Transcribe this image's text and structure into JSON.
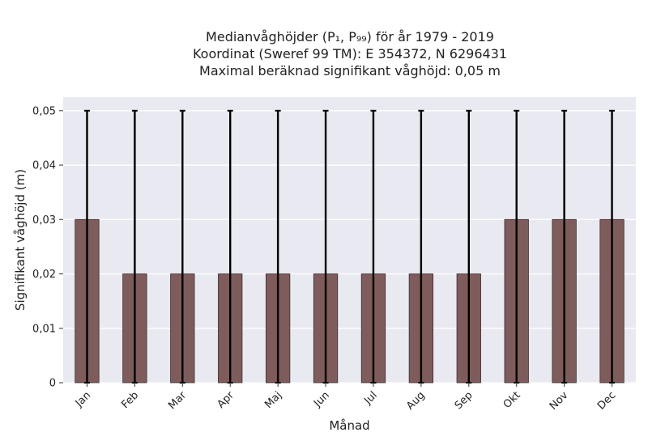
{
  "chart_data": {
    "type": "bar",
    "title_lines": [
      "Medianvåghöjder (P₁, P₉₉) för år 1979 - 2019",
      "Koordinat (Sweref 99 TM): E 354372, N 6296431",
      "Maximal beräknad signifikant våghöjd: 0,05 m"
    ],
    "xlabel": "Månad",
    "ylabel": "Signifikant våghöjd (m)",
    "categories": [
      "Jan",
      "Feb",
      "Mar",
      "Apr",
      "Maj",
      "Jun",
      "Jul",
      "Aug",
      "Sep",
      "Okt",
      "Nov",
      "Dec"
    ],
    "values": [
      0.03,
      0.02,
      0.02,
      0.02,
      0.02,
      0.02,
      0.02,
      0.02,
      0.02,
      0.03,
      0.03,
      0.03
    ],
    "error_low": [
      0,
      0,
      0,
      0,
      0,
      0,
      0,
      0,
      0,
      0,
      0,
      0
    ],
    "error_high": [
      0.05,
      0.05,
      0.05,
      0.05,
      0.05,
      0.05,
      0.05,
      0.05,
      0.05,
      0.05,
      0.05,
      0.05
    ],
    "ylim": [
      0,
      0.0525
    ],
    "yticks": [
      0,
      0.01,
      0.02,
      0.03,
      0.04,
      0.05
    ],
    "ytick_labels": [
      "0",
      "0,01",
      "0,02",
      "0,03",
      "0,04",
      "0,05"
    ],
    "grid": true,
    "bar_color": "#7f5c5c",
    "background_color": "#e9e9f1"
  }
}
